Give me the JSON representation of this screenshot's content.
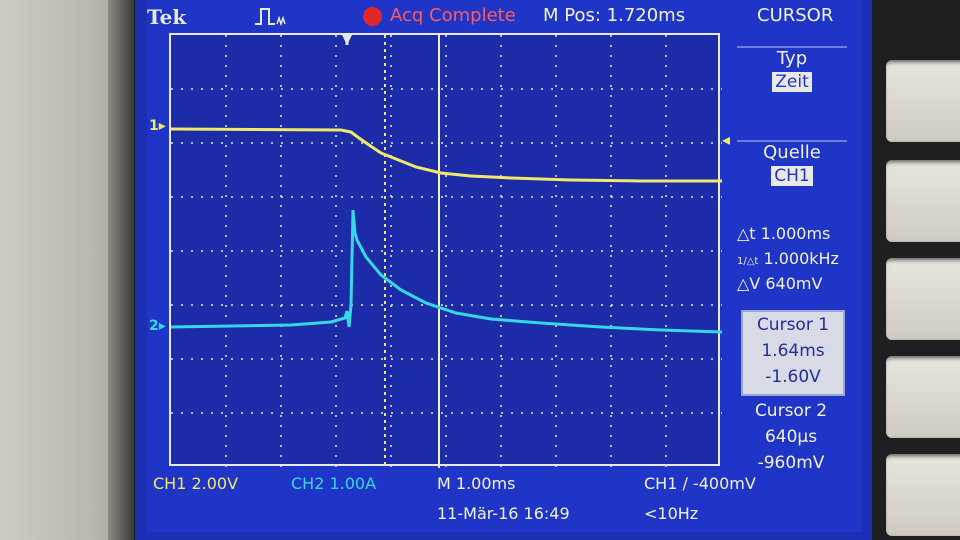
{
  "header": {
    "brand": "Tek",
    "acq_status": "Acq Complete",
    "m_pos": "M Pos: 1.720ms",
    "menu_title": "CURSOR"
  },
  "channels": {
    "ch1_marker": "1",
    "ch2_marker": "2"
  },
  "side_menu": {
    "type_label": "Typ",
    "type_value": "Zeit",
    "source_label": "Quelle",
    "source_value": "CH1",
    "delta_t": "△t 1.000ms",
    "delta_freq": "1.000kHz",
    "delta_freq_symbol": "1/△t",
    "delta_v": "△V 640mV",
    "cursor1_label": "Cursor 1",
    "cursor1_time": "1.64ms",
    "cursor1_volt": "-1.60V",
    "cursor2_label": "Cursor 2",
    "cursor2_time": "640µs",
    "cursor2_volt": "-960mV"
  },
  "status_bar": {
    "ch1_scale": "CH1  2.00V",
    "ch2_scale": "CH2  1.00A",
    "timebase": "M 1.00ms",
    "trigger": "CH1 ∕ -400mV",
    "date": "11-Mär-16 16:49",
    "freq": "<10Hz"
  },
  "colors": {
    "ch1": "#f2e86a",
    "ch2": "#35d9e6",
    "screen_bg": "#1e35c8",
    "graticule": "#e9e9e9",
    "acq_status": "#ff5a5a"
  }
}
